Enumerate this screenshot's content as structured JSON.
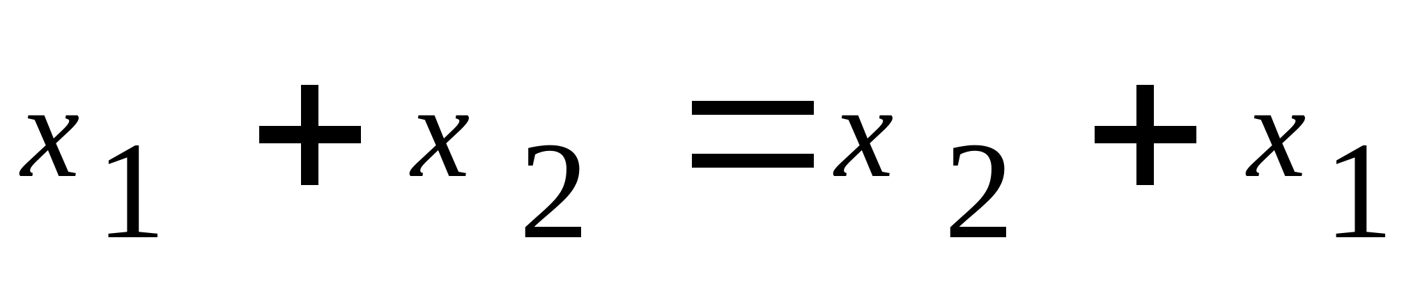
{
  "equation": {
    "term1": {
      "variable": "x",
      "subscript": "1"
    },
    "op1": "+",
    "term2": {
      "variable": "x",
      "subscript": "2"
    },
    "relation": "=",
    "term3": {
      "variable": "x",
      "subscript": "2"
    },
    "op2": "+",
    "term4": {
      "variable": "x",
      "subscript": "1"
    }
  }
}
